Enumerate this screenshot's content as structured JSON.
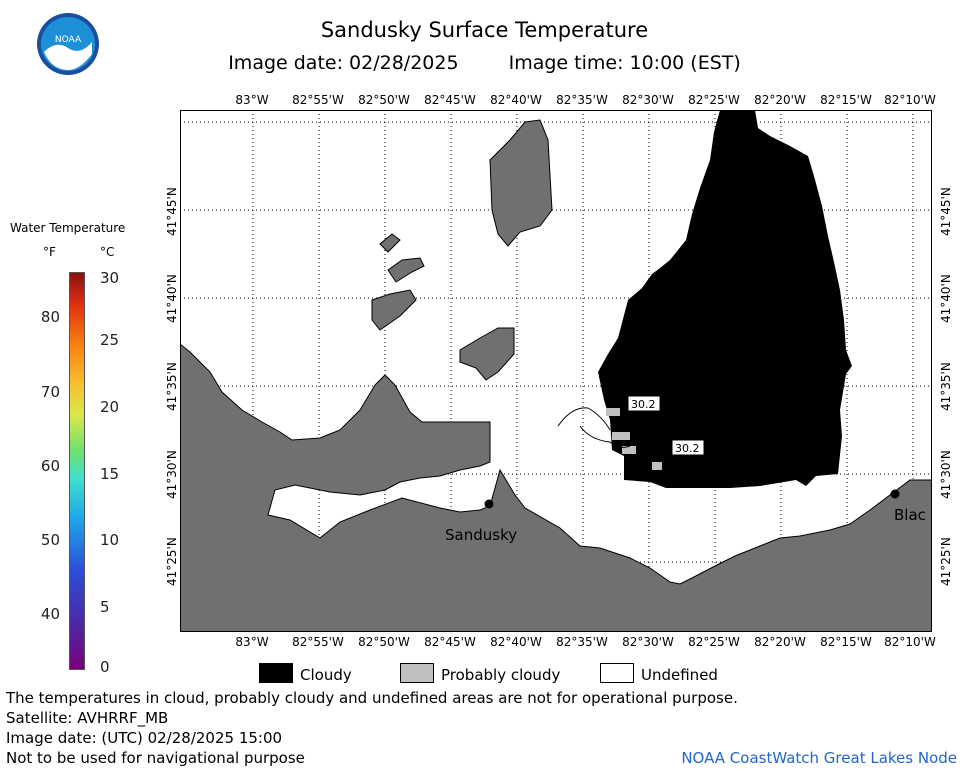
{
  "title": "Sandusky Surface Temperature",
  "image_date_label": "Image date: 02/28/2025",
  "image_time_label": "Image time: 10:00 (EST)",
  "longitude_labels": [
    "83°W",
    "82°55'W",
    "82°50'W",
    "82°45'W",
    "82°40'W",
    "82°35'W",
    "82°30'W",
    "82°25'W",
    "82°20'W",
    "82°15'W",
    "82°10'W"
  ],
  "latitude_labels": [
    "41°45'N",
    "41°40'N",
    "41°35'N",
    "41°30'N",
    "41°25'N"
  ],
  "colorbar": {
    "title": "Water Temperature",
    "unit_f": "°F",
    "unit_c": "°C",
    "fahrenheit_ticks": [
      "80",
      "70",
      "60",
      "50",
      "40"
    ],
    "celsius_ticks": [
      "30",
      "25",
      "20",
      "15",
      "10",
      "5",
      "0"
    ]
  },
  "map": {
    "city_labels": [
      "Sandusky",
      "Blac"
    ],
    "temperature_readouts": [
      "30.2",
      "30.2"
    ],
    "colors": {
      "land": "#707070",
      "cloudy": "#000000",
      "probably_cloudy": "#c0c0c0",
      "undefined": "#ffffff"
    }
  },
  "legend": {
    "cloudy": "Cloudy",
    "probably_cloudy": "Probably cloudy",
    "undefined": "Undefined"
  },
  "footer": {
    "disclaimer": "The temperatures in cloud, probably cloudy and undefined areas are not for operational purpose.",
    "satellite": "Satellite: AVHRRF_MB",
    "utc_date": "Image date: (UTC) 02/28/2025  15:00",
    "navigation": "Not to be used for navigational purpose",
    "credit": "NOAA CoastWatch Great Lakes Node"
  },
  "logo_text": "NOAA"
}
